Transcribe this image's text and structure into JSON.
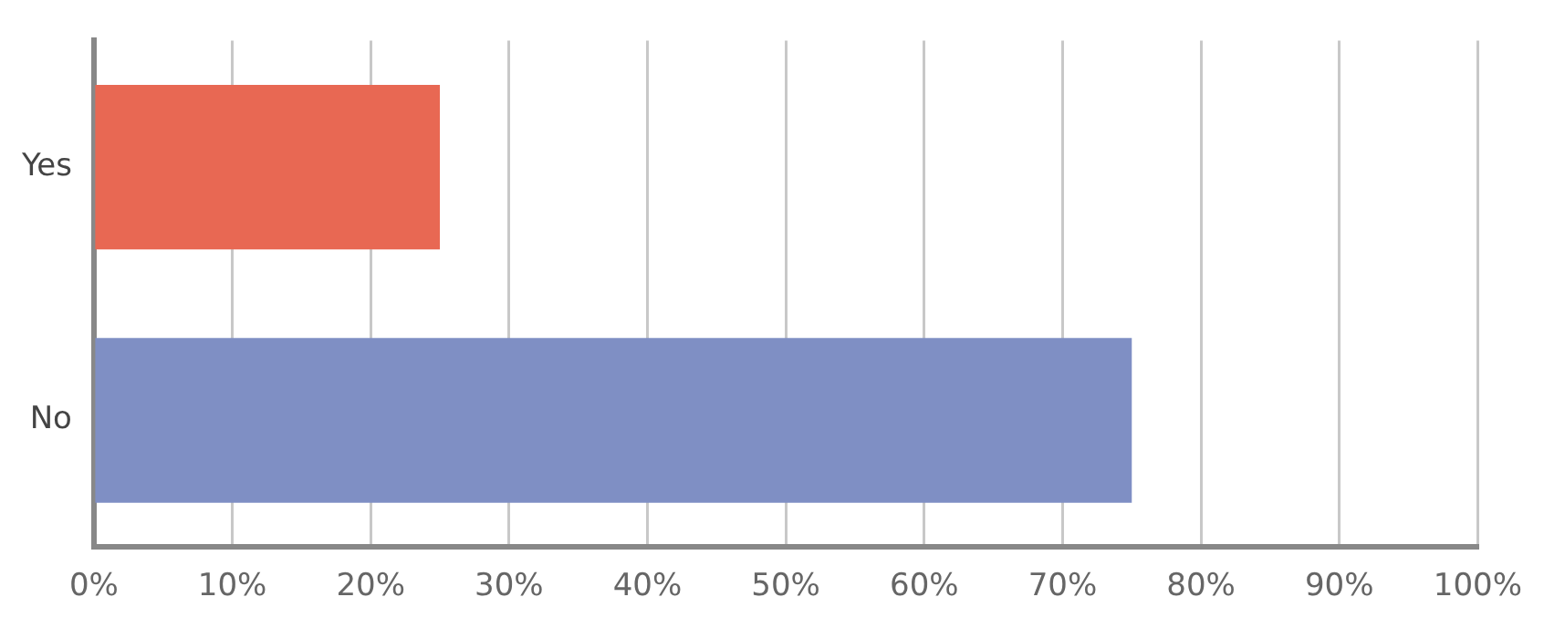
{
  "chart_data": {
    "type": "bar",
    "orientation": "horizontal",
    "categories": [
      "Yes",
      "No"
    ],
    "values": [
      25,
      75
    ],
    "colors": [
      "#e86853",
      "#7f8fc4"
    ],
    "xlim": [
      0,
      100
    ],
    "xticks": [
      {
        "value": 0,
        "label": "0%"
      },
      {
        "value": 10,
        "label": "10%"
      },
      {
        "value": 20,
        "label": "20%"
      },
      {
        "value": 30,
        "label": "30%"
      },
      {
        "value": 40,
        "label": "40%"
      },
      {
        "value": 50,
        "label": "50%"
      },
      {
        "value": 60,
        "label": "60%"
      },
      {
        "value": 70,
        "label": "70%"
      },
      {
        "value": 80,
        "label": "80%"
      },
      {
        "value": 90,
        "label": "90%"
      },
      {
        "value": 100,
        "label": "100%"
      }
    ],
    "grid": "x"
  }
}
